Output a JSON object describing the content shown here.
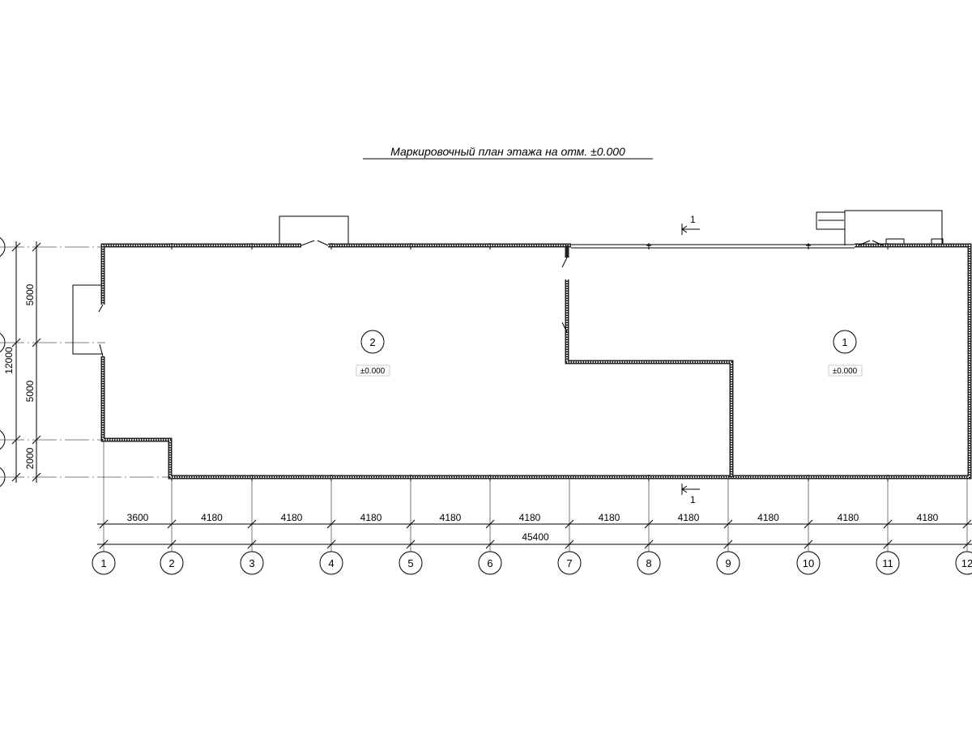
{
  "title": "Маркировочный план этажа на отм. ±0.000",
  "section_mark": "1",
  "rooms": [
    {
      "number": "2",
      "level": "±0.000"
    },
    {
      "number": "1",
      "level": "±0.000"
    }
  ],
  "axes_numbers": [
    "1",
    "2",
    "3",
    "4",
    "5",
    "6",
    "7",
    "8",
    "9",
    "10",
    "11",
    "12"
  ],
  "horizontal_dims": [
    "3600",
    "4180",
    "4180",
    "4180",
    "4180",
    "4180",
    "4180",
    "4180",
    "4180",
    "4180",
    "4180"
  ],
  "horizontal_total": "45400",
  "vertical_dims": [
    "5000",
    "5000",
    "2000"
  ],
  "vertical_total": "12000"
}
